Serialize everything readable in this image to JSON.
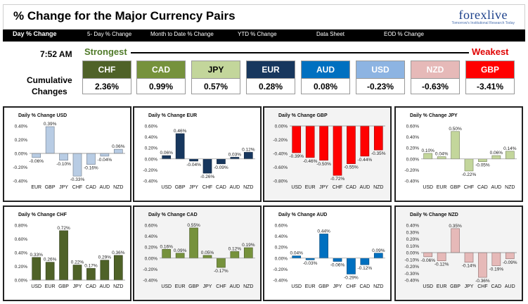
{
  "header": {
    "title": "% Change for the Major Currency Pairs",
    "logo_text": "forexlive",
    "logo_tagline": "Tomorrow's Institutional Research Today"
  },
  "nav": [
    {
      "label": "Day % Change",
      "active": true
    },
    {
      "label": "5- Day % Change"
    },
    {
      "label": "Month to Date % Change"
    },
    {
      "label": "YTD % Change"
    },
    {
      "label": "Data Sheet"
    },
    {
      "label": "EOD % Change"
    }
  ],
  "summary": {
    "time": "7:52 AM",
    "strongest_label": "Strongest",
    "weakest_label": "Weakest",
    "cumulative_label_line1": "Cumulative",
    "cumulative_label_line2": "Changes",
    "currencies": [
      {
        "code": "CHF",
        "value": "2.36%",
        "bg": "#4f6228",
        "fg": "#ffffff"
      },
      {
        "code": "CAD",
        "value": "0.99%",
        "bg": "#76923c",
        "fg": "#ffffff"
      },
      {
        "code": "JPY",
        "value": "0.57%",
        "bg": "#c3d69b",
        "fg": "#000000"
      },
      {
        "code": "EUR",
        "value": "0.28%",
        "bg": "#17375e",
        "fg": "#ffffff"
      },
      {
        "code": "AUD",
        "value": "0.08%",
        "bg": "#0070c0",
        "fg": "#ffffff"
      },
      {
        "code": "USD",
        "value": "-0.23%",
        "bg": "#8db4e2",
        "fg": "#ffffff"
      },
      {
        "code": "NZD",
        "value": "-0.63%",
        "bg": "#e6b9b8",
        "fg": "#ffffff"
      },
      {
        "code": "GBP",
        "value": "-3.41%",
        "bg": "#ff0000",
        "fg": "#ffffff"
      }
    ]
  },
  "chart_data": [
    {
      "type": "bar",
      "title": "Daily % Change USD",
      "categories": [
        "EUR",
        "GBP",
        "JPY",
        "CHF",
        "CAD",
        "AUD",
        "NZD"
      ],
      "values": [
        -0.06,
        0.39,
        -0.1,
        -0.33,
        -0.16,
        -0.04,
        0.06
      ],
      "value_labels": [
        "-0.06%",
        "0.39%",
        "-0.10%",
        "-0.33%",
        "-0.16%",
        "-0.04%",
        "0.06%"
      ],
      "ylim": [
        -0.4,
        0.4
      ],
      "yticks": [
        "0.40%",
        "0.20%",
        "0.00%",
        "-0.20%",
        "-0.40%"
      ],
      "ytick_values": [
        0.4,
        0.2,
        0,
        -0.2,
        -0.4
      ],
      "color": "#b8cce4",
      "background": "#ffffff"
    },
    {
      "type": "bar",
      "title": "Daily % Change EUR",
      "categories": [
        "USD",
        "GBP",
        "JPY",
        "CHF",
        "CAD",
        "AUD",
        "NZD"
      ],
      "values": [
        0.06,
        0.46,
        -0.04,
        -0.26,
        -0.09,
        0.03,
        0.12
      ],
      "value_labels": [
        "0.06%",
        "0.46%",
        "-0.04%",
        "-0.26%",
        "-0.09%",
        "0.03%",
        "0.12%"
      ],
      "ylim": [
        -0.4,
        0.6
      ],
      "yticks": [
        "0.60%",
        "0.40%",
        "0.20%",
        "0.00%",
        "-0.20%",
        "-0.40%"
      ],
      "ytick_values": [
        0.6,
        0.4,
        0.2,
        0,
        -0.2,
        -0.4
      ],
      "color": "#17375e",
      "background": "#ffffff"
    },
    {
      "type": "bar",
      "title": "Daily % Change GBP",
      "categories": [
        "USD",
        "EUR",
        "JPY",
        "CHF",
        "CAD",
        "AUD",
        "NZD"
      ],
      "values": [
        -0.39,
        -0.46,
        -0.5,
        -0.72,
        -0.55,
        -0.44,
        -0.35
      ],
      "value_labels": [
        "-0.39%",
        "-0.46%",
        "-0.50%",
        "-0.72%",
        "-0.55%",
        "-0.44%",
        "-0.35%"
      ],
      "ylim": [
        -0.8,
        0.0
      ],
      "yticks": [
        "0.00%",
        "-0.20%",
        "-0.40%",
        "-0.60%",
        "-0.80%"
      ],
      "ytick_values": [
        0,
        -0.2,
        -0.4,
        -0.6,
        -0.8
      ],
      "color": "#ff0000",
      "background": "#f3f3f3"
    },
    {
      "type": "bar",
      "title": "Daily % Change JPY",
      "categories": [
        "USD",
        "EUR",
        "GBP",
        "CHF",
        "CAD",
        "AUD",
        "NZD"
      ],
      "values": [
        0.1,
        0.04,
        0.5,
        -0.22,
        -0.05,
        0.06,
        0.14
      ],
      "value_labels": [
        "0.10%",
        "0.04%",
        "0.50%",
        "-0.22%",
        "-0.05%",
        "0.06%",
        "0.14%"
      ],
      "ylim": [
        -0.4,
        0.6
      ],
      "yticks": [
        "0.60%",
        "0.40%",
        "0.20%",
        "0.00%",
        "-0.20%",
        "-0.40%"
      ],
      "ytick_values": [
        0.6,
        0.4,
        0.2,
        0,
        -0.2,
        -0.4
      ],
      "color": "#c3d69b",
      "background": "#ffffff"
    },
    {
      "type": "bar",
      "title": "Daily % Change CHF",
      "categories": [
        "USD",
        "EUR",
        "GBP",
        "JPY",
        "CAD",
        "AUD",
        "NZD"
      ],
      "values": [
        0.33,
        0.26,
        0.72,
        0.22,
        0.17,
        0.29,
        0.36
      ],
      "value_labels": [
        "0.33%",
        "0.26%",
        "0.72%",
        "0.22%",
        "0.17%",
        "0.29%",
        "0.36%"
      ],
      "ylim": [
        0.0,
        0.8
      ],
      "yticks": [
        "0.80%",
        "0.60%",
        "0.40%",
        "0.20%",
        "0.00%"
      ],
      "ytick_values": [
        0.8,
        0.6,
        0.4,
        0.2,
        0
      ],
      "color": "#4f6228",
      "background": "#ffffff"
    },
    {
      "type": "bar",
      "title": "Daily % Change CAD",
      "categories": [
        "USD",
        "EUR",
        "GBP",
        "JPY",
        "CHF",
        "AUD",
        "NZD"
      ],
      "values": [
        0.16,
        0.09,
        0.55,
        0.05,
        -0.17,
        0.12,
        0.19
      ],
      "value_labels": [
        "0.16%",
        "0.09%",
        "0.55%",
        "0.05%",
        "-0.17%",
        "0.12%",
        "0.19%"
      ],
      "ylim": [
        -0.4,
        0.6
      ],
      "yticks": [
        "0.60%",
        "0.40%",
        "0.20%",
        "0.00%",
        "-0.20%",
        "-0.40%"
      ],
      "ytick_values": [
        0.6,
        0.4,
        0.2,
        0,
        -0.2,
        -0.4
      ],
      "color": "#76923c",
      "background": "#f3f3f3"
    },
    {
      "type": "bar",
      "title": "Daily % Change AUD",
      "categories": [
        "USD",
        "EUR",
        "GBP",
        "JPY",
        "CHF",
        "CAD",
        "NZD"
      ],
      "values": [
        0.04,
        -0.03,
        0.44,
        -0.06,
        -0.29,
        -0.12,
        0.09
      ],
      "value_labels": [
        "0.04%",
        "-0.03%",
        "0.44%",
        "-0.06%",
        "-0.29%",
        "-0.12%",
        "0.09%"
      ],
      "ylim": [
        -0.4,
        0.6
      ],
      "yticks": [
        "0.60%",
        "0.40%",
        "0.20%",
        "0.00%",
        "-0.20%",
        "-0.40%"
      ],
      "ytick_values": [
        0.6,
        0.4,
        0.2,
        0,
        -0.2,
        -0.4
      ],
      "color": "#0070c0",
      "background": "#ffffff"
    },
    {
      "type": "bar",
      "title": "Daily % Change NZD",
      "categories": [
        "USD",
        "EUR",
        "GBP",
        "JPY",
        "CHF",
        "CAD",
        "AUD"
      ],
      "values": [
        -0.06,
        -0.12,
        0.35,
        -0.14,
        -0.36,
        -0.19,
        -0.09
      ],
      "value_labels": [
        "-0.06%",
        "-0.12%",
        "0.35%",
        "-0.14%",
        "-0.36%",
        "-0.19%",
        "-0.09%"
      ],
      "ylim": [
        -0.4,
        0.4
      ],
      "yticks": [
        "0.40%",
        "0.30%",
        "0.20%",
        "0.10%",
        "0.00%",
        "-0.10%",
        "-0.20%",
        "-0.30%",
        "-0.40%"
      ],
      "ytick_values": [
        0.4,
        0.3,
        0.2,
        0.1,
        0,
        -0.1,
        -0.2,
        -0.3,
        -0.4
      ],
      "color": "#e6b9b8",
      "background": "#f3f3f3"
    }
  ]
}
